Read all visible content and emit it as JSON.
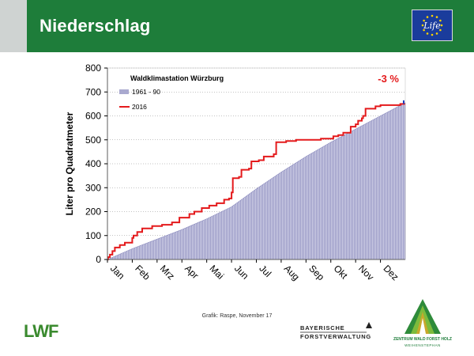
{
  "header": {
    "title": "Niederschlag",
    "eu_logo_text": "Life"
  },
  "chart_data": {
    "type": "area",
    "title": "Waldklimastation Würzburg",
    "annotation": "-3 %",
    "xlabel": "",
    "ylabel": "Liter pro Quadratmeter",
    "ylim": [
      0,
      800
    ],
    "yticks": [
      0,
      100,
      200,
      300,
      400,
      500,
      600,
      700,
      800
    ],
    "categories": [
      "Jan",
      "Feb",
      "Mrz",
      "Apr",
      "Mai",
      "Jun",
      "Jul",
      "Aug",
      "Sep",
      "Okt",
      "Nov",
      "Dez"
    ],
    "x_unit": "month",
    "grid": "horizontal",
    "legend_position": "top-left",
    "series": [
      {
        "name": "1961 - 90",
        "kind": "area",
        "color": "#a9a9cf",
        "x": [
          0,
          1,
          2,
          3,
          4,
          5,
          6,
          7,
          8,
          9,
          10,
          11,
          12
        ],
        "values": [
          0,
          45,
          85,
          125,
          170,
          220,
          295,
          365,
          430,
          490,
          545,
          600,
          655
        ]
      },
      {
        "name": "2016",
        "kind": "step",
        "color": "#e41a1c",
        "x": [
          0,
          0.03,
          0.1,
          0.2,
          0.3,
          0.5,
          0.7,
          1.0,
          1.05,
          1.2,
          1.4,
          1.8,
          2.2,
          2.6,
          2.9,
          3.1,
          3.3,
          3.5,
          3.8,
          4.1,
          4.4,
          4.7,
          4.9,
          5.0,
          5.05,
          5.3,
          5.4,
          5.7,
          5.8,
          6.1,
          6.3,
          6.7,
          6.8,
          7.2,
          7.6,
          8.1,
          8.6,
          9.0,
          9.1,
          9.3,
          9.5,
          9.8,
          10.0,
          10.1,
          10.25,
          10.3,
          10.4,
          10.8,
          11.0,
          11.5,
          11.8,
          12.0
        ],
        "values": [
          0,
          10,
          20,
          35,
          50,
          60,
          70,
          90,
          100,
          115,
          130,
          140,
          145,
          155,
          175,
          175,
          190,
          200,
          215,
          225,
          235,
          250,
          255,
          280,
          340,
          345,
          375,
          380,
          410,
          415,
          430,
          440,
          490,
          495,
          500,
          500,
          505,
          505,
          515,
          520,
          530,
          555,
          565,
          580,
          590,
          600,
          630,
          640,
          645,
          645,
          650,
          650
        ]
      }
    ],
    "end_marker_color": "#1f3fbf"
  },
  "source_text": "Grafik: Raspe, November 17",
  "logos": {
    "lwf": "LWF",
    "bayern_line1": "BAYERISCHE",
    "bayern_line2": "FORSTVERWALTUNG",
    "zwfh_line1": "ZENTRUM WALD FORST HOLZ",
    "zwfh_line2": "WEIHENSTEPHAN"
  },
  "colors": {
    "header_green": "#1e7d3a",
    "header_grey": "#cfd3d2",
    "eu_blue": "#1a3c9c",
    "eu_star": "#ffd400",
    "lwf_green": "#3a8a2e"
  }
}
